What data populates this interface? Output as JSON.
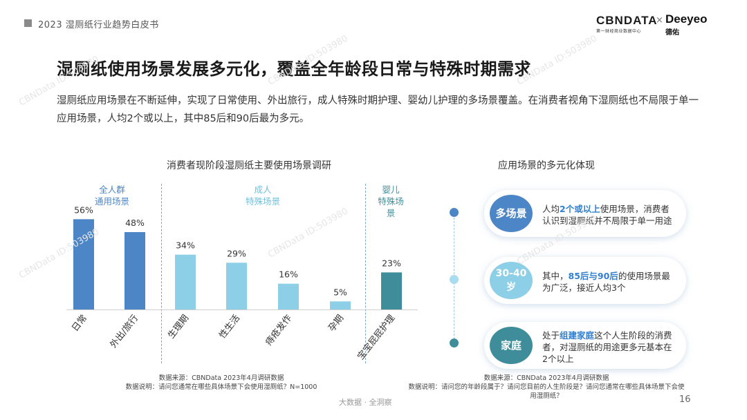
{
  "header": {
    "report_title": "2023 湿厕纸行业趋势白皮书",
    "logo_cbn": "CBNDATA",
    "logo_cbn_sub": "第一财经商业数据中心",
    "logo_sep": "×",
    "logo_deeyeo": "Deeyeo",
    "logo_deeyeo_sub": "德佑"
  },
  "main_title": "湿厕纸使用场景发展多元化，覆盖全年龄段日常与特殊时期需求",
  "intro": "湿厕纸应用场景在不断延伸，实现了日常使用、外出旅行，成人特殊时期护理、婴幼儿护理的多场景覆盖。在消费者视角下湿厕纸也不局限于单一应用场景，人均2个或以上，其中85后和90后最为多元。",
  "chart_data": {
    "type": "bar",
    "title": "消费者现阶段湿厕纸主要使用场景调研",
    "categories": [
      "日常",
      "外出/旅行",
      "生理期",
      "性生活",
      "痔疮发作",
      "孕期",
      "宝宝屁屁护理"
    ],
    "values": [
      56,
      48,
      34,
      29,
      16,
      5,
      23
    ],
    "value_labels": [
      "56%",
      "48%",
      "34%",
      "29%",
      "16%",
      "5%",
      "23%"
    ],
    "groups": [
      {
        "label_line1": "全人群",
        "label_line2": "通用场景",
        "color": "#4d86c6"
      },
      {
        "label_line1": "成人",
        "label_line2": "特殊场景",
        "color": "#8ccfe6"
      },
      {
        "label_line1": "婴儿",
        "label_line2": "特殊场",
        "label_line3": "景",
        "color": "#3f8d9a"
      }
    ],
    "bar_colors": [
      "#4d86c6",
      "#4d86c6",
      "#8ccfe6",
      "#8ccfe6",
      "#8ccfe6",
      "#8ccfe6",
      "#3f8d9a"
    ],
    "ylim": [
      0,
      60
    ],
    "unit": "%"
  },
  "left_source": {
    "line1": "数据来源：CBNData 2023年4月调研数据",
    "line2": "数据说明：请问您通常在哪些具体场景下会使用湿厕纸？N=1000"
  },
  "right_panel": {
    "title": "应用场景的多元化体现",
    "items": [
      {
        "badge": "多场景",
        "color": "#4d86c6",
        "l1_pre": "人均",
        "l1_hl": "2个或以上",
        "l1_post": "使用场景，消费者",
        "l2": "认识到湿厕纸并不局限于单一用途"
      },
      {
        "badge_l1": "30-40",
        "badge_l2": "岁",
        "color": "#8ccfe6",
        "l1_pre": "其中，",
        "l1_hl": "85后与90后",
        "l1_post": "的使用场景最",
        "l2": "为广泛，接近人均3个"
      },
      {
        "badge": "家庭",
        "color": "#3f8d9a",
        "l1_pre": "处于",
        "l1_hl": "组建家庭",
        "l1_post": "这个人生阶段的消费",
        "l2": "者，对湿厕纸的用途更多元基本在",
        "l3": "2个以上"
      }
    ]
  },
  "right_source": {
    "line1": "数据来源：CBNData 2023年4月调研数据",
    "line2": "数据说明：请问您的年龄段属于？请问您目前的人生阶段是？请问您通常在哪些具体场景下会使",
    "line3": "用湿厕纸？"
  },
  "footer": {
    "center": "大数据 · 全洞察",
    "page": "16"
  },
  "watermark_text": "CBNData ID:503980"
}
